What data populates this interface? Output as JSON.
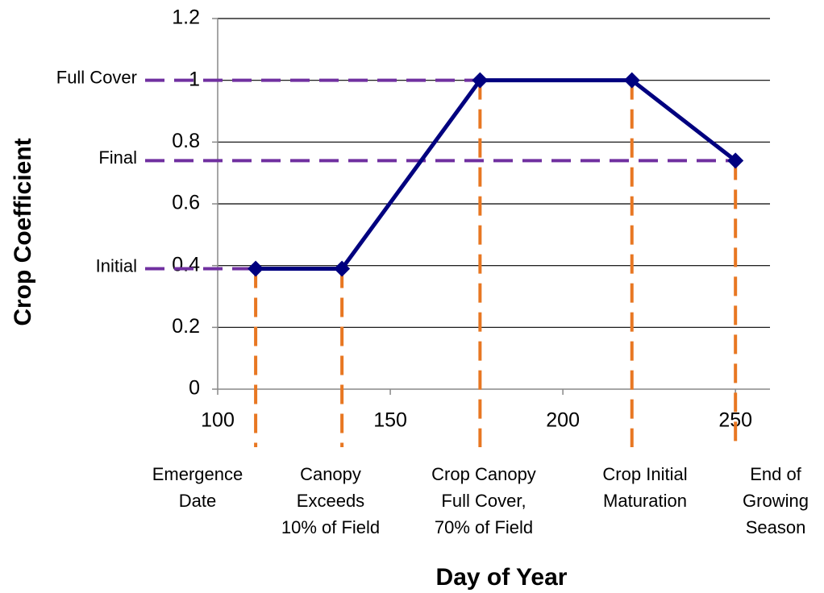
{
  "chart_data": {
    "type": "line",
    "x_label": "Day of Year",
    "y_label": "Crop Coefficient",
    "x": [
      111,
      136,
      176,
      220,
      250
    ],
    "series": [
      {
        "name": "Crop Coefficient",
        "color": "#00007f",
        "values": [
          0.39,
          0.39,
          1.0,
          1.0,
          0.74
        ]
      }
    ],
    "xlim": [
      100,
      260
    ],
    "xticks": [
      100,
      150,
      200,
      250
    ],
    "ylim": [
      0,
      1.2
    ],
    "yticks": [
      0,
      0.2,
      0.4,
      0.6,
      0.8,
      1,
      1.2
    ],
    "grid": true,
    "horizontal_markers": [
      {
        "label": "Full Cover",
        "value": 1.0
      },
      {
        "label": "Final",
        "value": 0.74
      },
      {
        "label": "Initial",
        "value": 0.39
      }
    ],
    "horizontal_marker_color": "#7030a0",
    "vertical_marker_color": "#e87722",
    "stage_labels": [
      [
        "Emergence",
        "Date"
      ],
      [
        "Canopy",
        "Exceeds",
        "10% of Field"
      ],
      [
        "Crop Canopy",
        "Full Cover,",
        "70% of Field"
      ],
      [
        "Crop Initial",
        "Maturation"
      ],
      [
        "End of",
        "Growing",
        "Season"
      ]
    ]
  }
}
